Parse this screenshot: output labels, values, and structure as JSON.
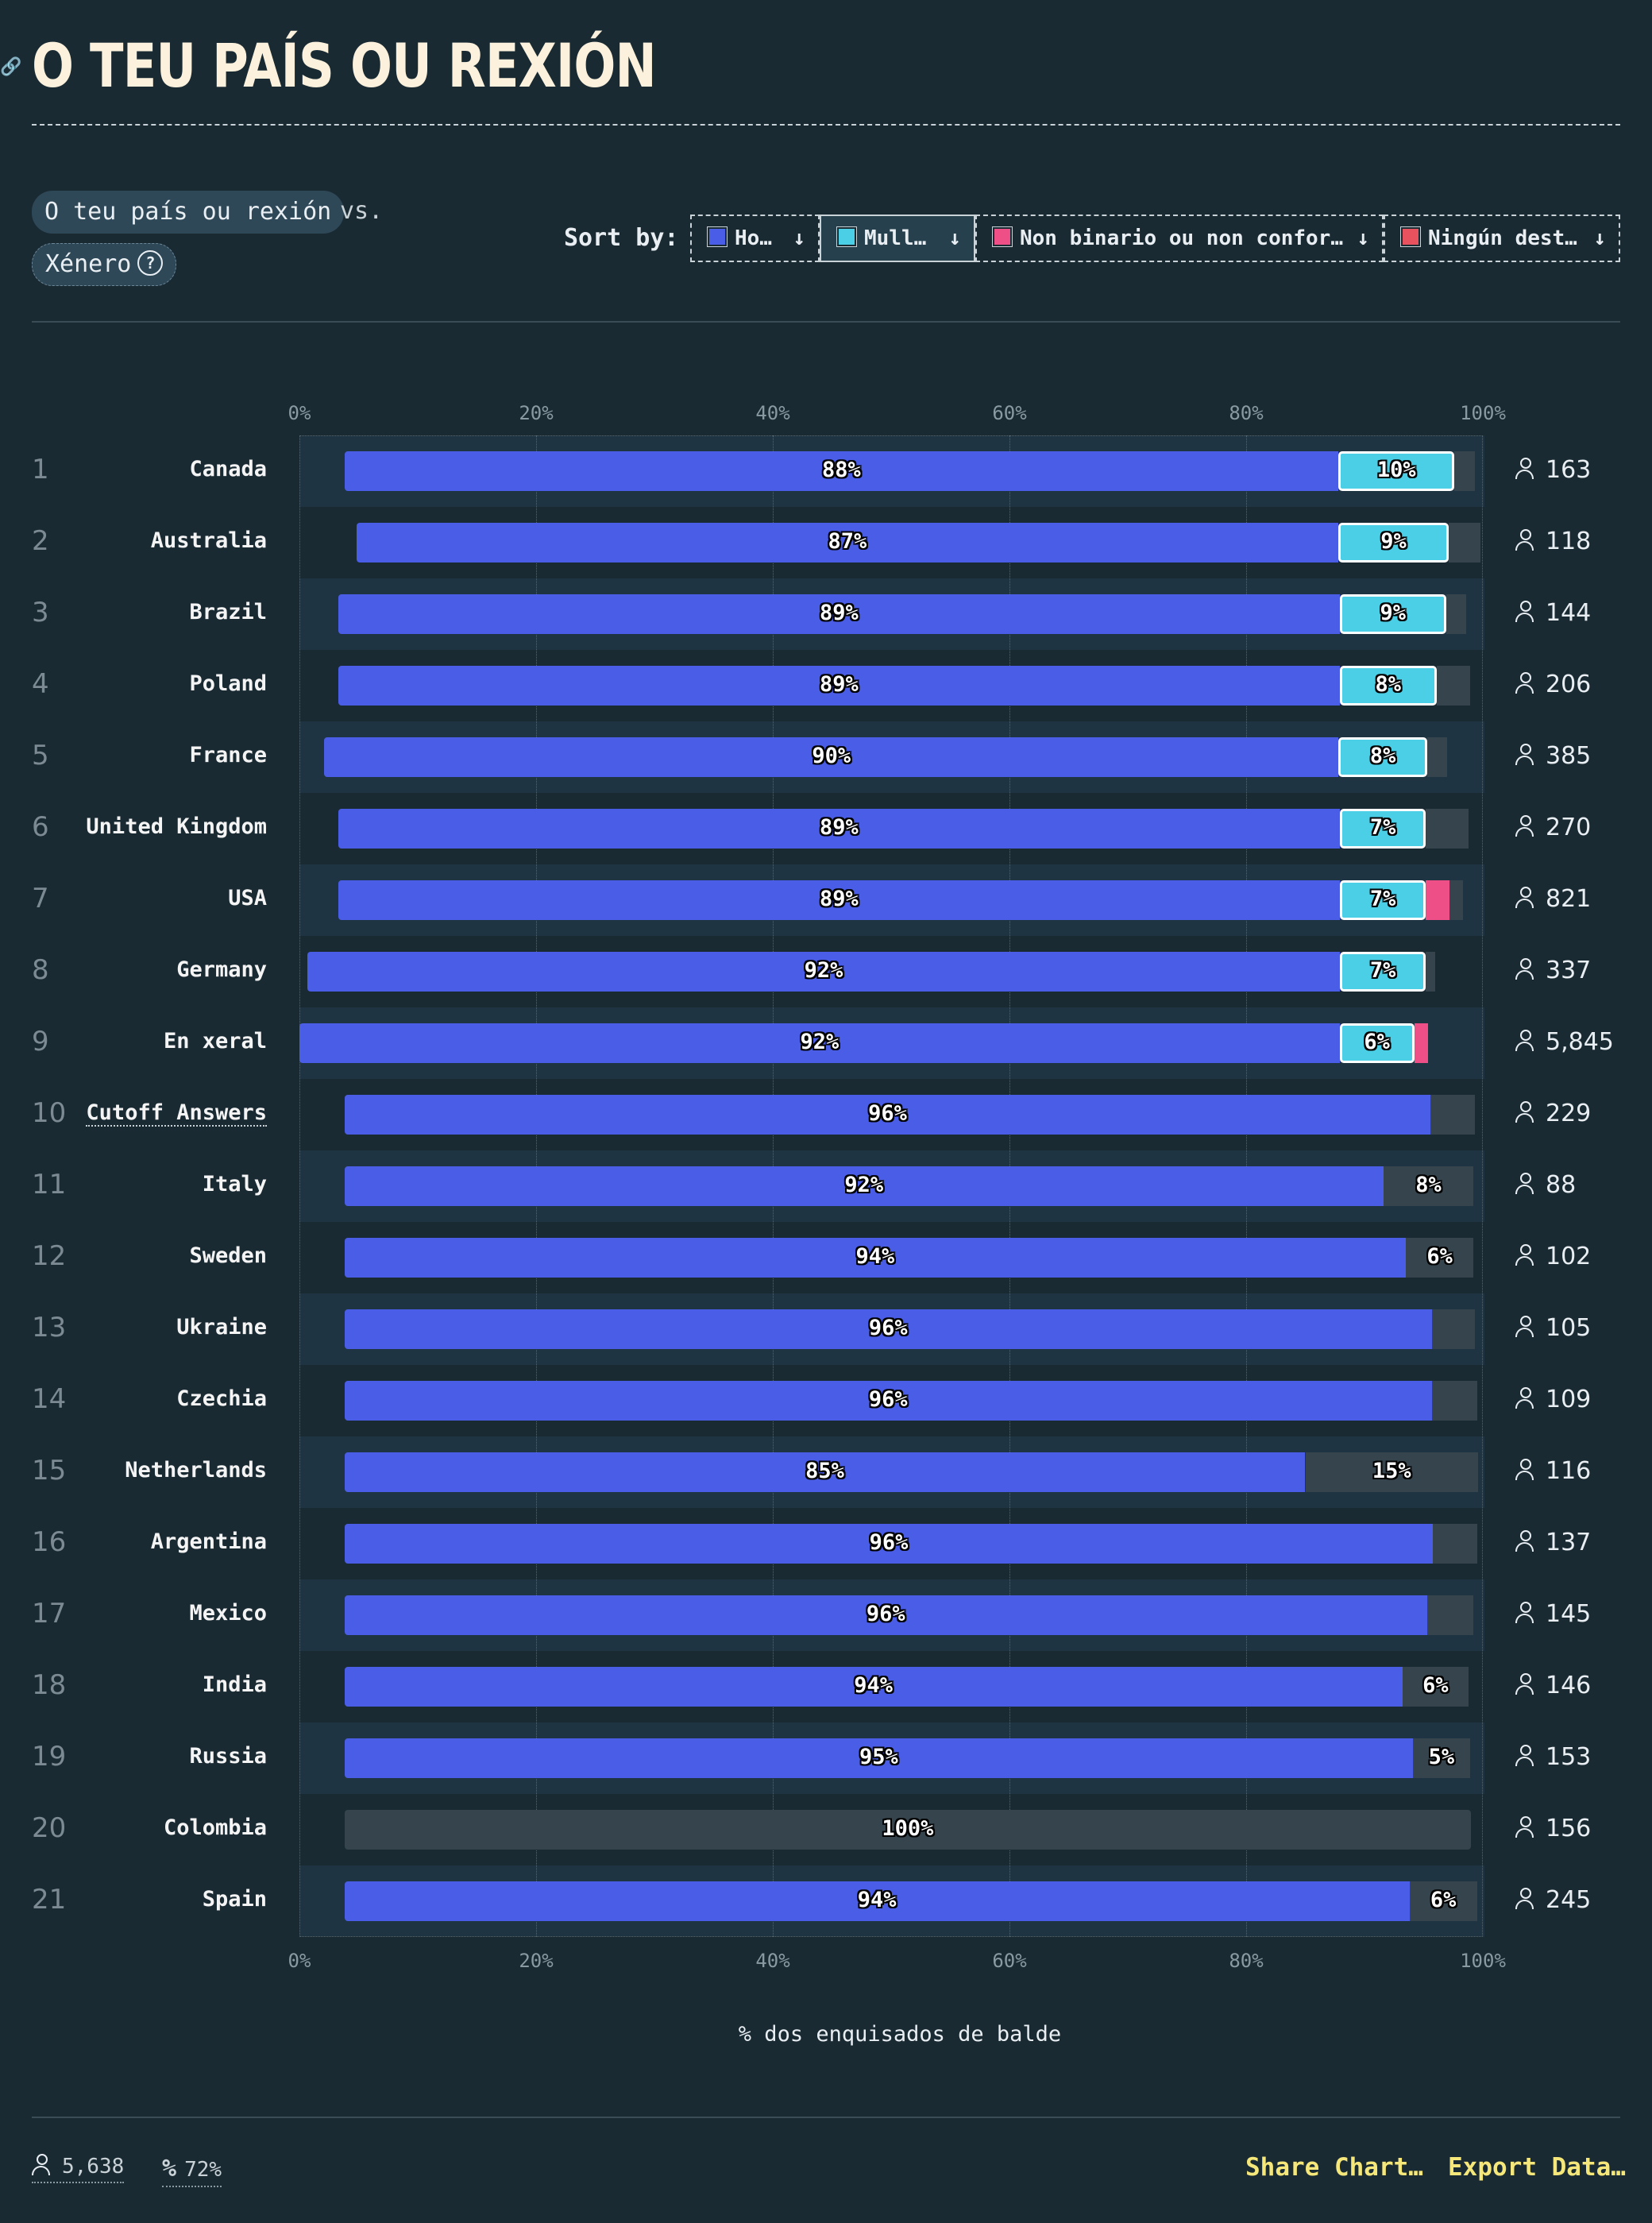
{
  "header": {
    "title": "O TEU PAÍS OU REXIÓN"
  },
  "controls": {
    "chip_country": "O teu país ou rexión",
    "vs": "vs.",
    "chip_gender": "Xénero",
    "help_icon": "?",
    "sort_label": "Sort by:",
    "sort_buttons": [
      {
        "label": "Ho…",
        "color": "#4a5de6",
        "active": false
      },
      {
        "label": "Mull…",
        "color": "#4bcfe6",
        "active": true
      },
      {
        "label": "Non binario ou non confor…",
        "color": "#ee4f86",
        "active": false
      },
      {
        "label": "Ningún dest…",
        "color": "#e8525f",
        "active": false
      }
    ],
    "sort_arrow": "↓"
  },
  "chart_data": {
    "type": "bar",
    "stacked": true,
    "orientation": "horizontal",
    "xlabel": "% dos enquisados de balde",
    "xlim": [
      0,
      100
    ],
    "ticks": [
      "0%",
      "20%",
      "40%",
      "60%",
      "80%",
      "100%"
    ],
    "grid": true,
    "series_names": [
      "Ho…",
      "Mull…",
      "Non binario ou non confor…",
      "Ningún dest…"
    ],
    "rows": [
      {
        "rank": "1",
        "name": "Canada",
        "count": "163",
        "start": 3.8,
        "man": 84,
        "woman": 9.8,
        "nb": 0,
        "none": 0,
        "rest": 1.7,
        "labels": {
          "man": "88%",
          "woman": "10%"
        }
      },
      {
        "rank": "2",
        "name": "Australia",
        "count": "118",
        "start": 4.8,
        "man": 83,
        "woman": 9.3,
        "nb": 0,
        "none": 0,
        "rest": 2.7,
        "labels": {
          "man": "87%",
          "woman": "9%"
        }
      },
      {
        "rank": "3",
        "name": "Brazil",
        "count": "144",
        "start": 3.3,
        "man": 84.6,
        "woman": 9,
        "nb": 0,
        "none": 0,
        "rest": 1.7,
        "labels": {
          "man": "89%",
          "woman": "9%"
        }
      },
      {
        "rank": "4",
        "name": "Poland",
        "count": "206",
        "start": 3.3,
        "man": 84.6,
        "woman": 8.2,
        "nb": 0,
        "none": 0,
        "rest": 2.8,
        "labels": {
          "man": "89%",
          "woman": "8%"
        }
      },
      {
        "rank": "5",
        "name": "France",
        "count": "385",
        "start": 2.1,
        "man": 85.7,
        "woman": 7.5,
        "nb": 0,
        "none": 0,
        "rest": 1.7,
        "labels": {
          "man": "90%",
          "woman": "8%"
        }
      },
      {
        "rank": "6",
        "name": "United Kingdom",
        "count": "270",
        "start": 3.3,
        "man": 84.6,
        "woman": 7.3,
        "nb": 0,
        "none": 0,
        "rest": 3.6,
        "labels": {
          "man": "89%",
          "woman": "7%"
        }
      },
      {
        "rank": "7",
        "name": "USA",
        "count": "821",
        "start": 3.3,
        "man": 84.6,
        "woman": 7.3,
        "nb": 2,
        "none": 0,
        "rest": 1.1,
        "labels": {
          "man": "89%",
          "woman": "7%"
        }
      },
      {
        "rank": "8",
        "name": "Germany",
        "count": "337",
        "start": 0.7,
        "man": 87.2,
        "woman": 7.3,
        "nb": 0,
        "none": 0,
        "rest": 0.8,
        "labels": {
          "man": "92%",
          "woman": "7%"
        }
      },
      {
        "rank": "9",
        "name": "En xeral",
        "count": "5,845",
        "start": 0,
        "man": 87.9,
        "woman": 6.3,
        "nb": 1.2,
        "none": 0,
        "rest": 0,
        "labels": {
          "man": "92%",
          "woman": "6%"
        }
      },
      {
        "rank": "10",
        "name": "Cutoff Answers",
        "count": "229",
        "start": 3.8,
        "man": 91.8,
        "woman": 0,
        "nb": 0,
        "none": 0,
        "rest": 3.7,
        "labels": {
          "man": "96%"
        },
        "dotted": true
      },
      {
        "rank": "11",
        "name": "Italy",
        "count": "88",
        "start": 3.8,
        "man": 87.8,
        "woman": 0,
        "nb": 0,
        "none": 0,
        "rest": 7.6,
        "labels": {
          "man": "92%",
          "rest": "8%"
        }
      },
      {
        "rank": "12",
        "name": "Sweden",
        "count": "102",
        "start": 3.8,
        "man": 89.7,
        "woman": 0,
        "nb": 0,
        "none": 0,
        "rest": 5.7,
        "labels": {
          "man": "94%",
          "rest": "6%"
        }
      },
      {
        "rank": "13",
        "name": "Ukraine",
        "count": "105",
        "start": 3.8,
        "man": 91.9,
        "woman": 0,
        "nb": 0,
        "none": 0,
        "rest": 3.6,
        "labels": {
          "man": "96%"
        }
      },
      {
        "rank": "14",
        "name": "Czechia",
        "count": "109",
        "start": 3.8,
        "man": 91.9,
        "woman": 0,
        "nb": 0,
        "none": 0,
        "rest": 3.8,
        "labels": {
          "man": "96%"
        }
      },
      {
        "rank": "15",
        "name": "Netherlands",
        "count": "116",
        "start": 3.8,
        "man": 81.2,
        "woman": 0,
        "nb": 0,
        "none": 0,
        "rest": 14.6,
        "labels": {
          "man": "85%",
          "rest": "15%"
        }
      },
      {
        "rank": "16",
        "name": "Argentina",
        "count": "137",
        "start": 3.8,
        "man": 92,
        "woman": 0,
        "nb": 0,
        "none": 0,
        "rest": 3.7,
        "labels": {
          "man": "96%"
        }
      },
      {
        "rank": "17",
        "name": "Mexico",
        "count": "145",
        "start": 3.8,
        "man": 91.5,
        "woman": 0,
        "nb": 0,
        "none": 0,
        "rest": 3.9,
        "labels": {
          "man": "96%"
        }
      },
      {
        "rank": "18",
        "name": "India",
        "count": "146",
        "start": 3.8,
        "man": 89.4,
        "woman": 0,
        "nb": 0,
        "none": 0,
        "rest": 5.6,
        "labels": {
          "man": "94%",
          "rest": "6%"
        }
      },
      {
        "rank": "19",
        "name": "Russia",
        "count": "153",
        "start": 3.8,
        "man": 90.3,
        "woman": 0,
        "nb": 0,
        "none": 0,
        "rest": 4.8,
        "labels": {
          "man": "95%",
          "rest": "5%"
        }
      },
      {
        "rank": "20",
        "name": "Colombia",
        "count": "156",
        "start": 3.8,
        "man": 0,
        "woman": 0,
        "nb": 0,
        "none": 0,
        "rest": 95.2,
        "labels": {
          "rest": "100%"
        }
      },
      {
        "rank": "21",
        "name": "Spain",
        "count": "245",
        "start": 3.8,
        "man": 90,
        "woman": 0,
        "nb": 0,
        "none": 0,
        "rest": 5.7,
        "labels": {
          "man": "94%",
          "rest": "6%"
        }
      }
    ],
    "colors": {
      "man": "#4a5de6",
      "woman": "#4bcfe6",
      "nb": "#ee4f86",
      "none": "#e8525f",
      "rest": "#35444d"
    }
  },
  "footer": {
    "respondents": "5,638",
    "percent": "72%",
    "share": "Share Chart…",
    "export": "Export Data…"
  }
}
